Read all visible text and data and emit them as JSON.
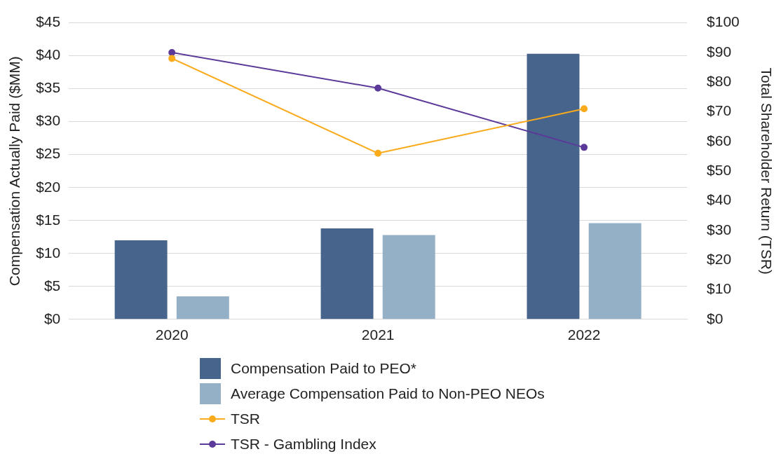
{
  "chart_data": {
    "type": "bar",
    "categories": [
      "2020",
      "2021",
      "2022"
    ],
    "ylabel": "Compensation Actually Paid ($MM)",
    "y2label": "Total Shareholder Return (TSR)",
    "series": [
      {
        "name": "Compensation Paid to PEO*",
        "color": "#47648c",
        "values": [
          12.0,
          13.8,
          40.3
        ]
      },
      {
        "name": "Average Compensation Paid to Non-PEO NEOs",
        "color": "#94b0c7",
        "values": [
          3.5,
          12.8,
          14.6
        ]
      },
      {
        "name": "TSR",
        "type": "line",
        "axis": "y2",
        "color": "#f9ab1c",
        "values": [
          88,
          56,
          71
        ]
      },
      {
        "name": "TSR - Gambling Index",
        "type": "line",
        "axis": "y2",
        "color": "#5b3a9a",
        "values": [
          90,
          78,
          58
        ]
      }
    ],
    "ylim": [
      0,
      45
    ],
    "yticks": [
      {
        "value": 0,
        "label": "$0"
      },
      {
        "value": 5,
        "label": "$5"
      },
      {
        "value": 10,
        "label": "$10"
      },
      {
        "value": 15,
        "label": "$15"
      },
      {
        "value": 20,
        "label": "$20"
      },
      {
        "value": 25,
        "label": "$25"
      },
      {
        "value": 30,
        "label": "$30"
      },
      {
        "value": 35,
        "label": "$35"
      },
      {
        "value": 40,
        "label": "$40"
      },
      {
        "value": 45,
        "label": "$45"
      }
    ],
    "y2lim": [
      0,
      100
    ],
    "y2ticks": [
      {
        "value": 0,
        "label": "$0"
      },
      {
        "value": 10,
        "label": "$10"
      },
      {
        "value": 20,
        "label": "$20"
      },
      {
        "value": 30,
        "label": "$30"
      },
      {
        "value": 40,
        "label": "$40"
      },
      {
        "value": 50,
        "label": "$50"
      },
      {
        "value": 60,
        "label": "$60"
      },
      {
        "value": 70,
        "label": "$70"
      },
      {
        "value": 80,
        "label": "$80"
      },
      {
        "value": 90,
        "label": "$90"
      },
      {
        "value": 100,
        "label": "$100"
      }
    ],
    "grid": "y",
    "legend": "bottom",
    "marker": "circle",
    "line_style": "solid"
  }
}
